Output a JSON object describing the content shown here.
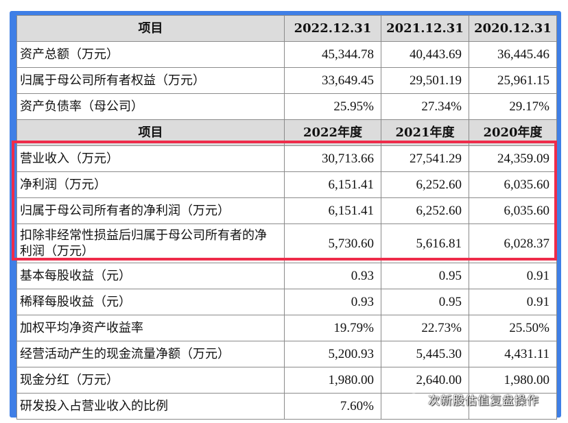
{
  "colors": {
    "frame": "#3f7fe6",
    "header_bg": "#dcdcdc",
    "highlight_border": "#ee2c4a"
  },
  "balance_sheet": {
    "header": [
      "项目",
      "2022.12.31",
      "2021.12.31",
      "2020.12.31"
    ],
    "rows": [
      {
        "label": "资产总额（万元）",
        "values": [
          "45,344.78",
          "40,443.69",
          "36,445.46"
        ]
      },
      {
        "label": "归属于母公司所有者权益（万元）",
        "values": [
          "33,649.45",
          "29,501.19",
          "25,961.15"
        ]
      },
      {
        "label": "资产负债率（母公司）",
        "values": [
          "25.95%",
          "27.34%",
          "29.17%"
        ]
      }
    ]
  },
  "income": {
    "header": [
      "项目",
      "2022年度",
      "2021年度",
      "2020年度"
    ],
    "rows": [
      {
        "label": "营业收入（万元）",
        "values": [
          "30,713.66",
          "27,541.29",
          "24,359.09"
        ]
      },
      {
        "label": "净利润（万元）",
        "values": [
          "6,151.41",
          "6,252.60",
          "6,035.60"
        ]
      },
      {
        "label": "归属于母公司所有者的净利润（万元）",
        "values": [
          "6,151.41",
          "6,252.60",
          "6,035.60"
        ]
      },
      {
        "label": "扣除非经常性损益后归属于母公司所有者的净利润（万元）",
        "values": [
          "5,730.60",
          "5,616.81",
          "6,028.37"
        ]
      },
      {
        "label": "基本每股收益（元）",
        "values": [
          "0.93",
          "0.95",
          "0.91"
        ]
      },
      {
        "label": "稀释每股收益（元）",
        "values": [
          "0.93",
          "0.95",
          "0.91"
        ]
      },
      {
        "label": "加权平均净资产收益率",
        "values": [
          "19.79%",
          "22.73%",
          "25.50%"
        ]
      },
      {
        "label": "经营活动产生的现金流量净额（万元）",
        "values": [
          "5,200.93",
          "5,445.30",
          "4,431.11"
        ]
      },
      {
        "label": "现金分红（万元）",
        "values": [
          "1,980.00",
          "2,640.00",
          "1,980.00"
        ]
      },
      {
        "label": "研发投入占营业收入的比例",
        "values": [
          "7.60%",
          "",
          ""
        ]
      }
    ]
  },
  "watermark": {
    "text": "次新股估值复盘操作",
    "icon": "wechat-icon"
  }
}
